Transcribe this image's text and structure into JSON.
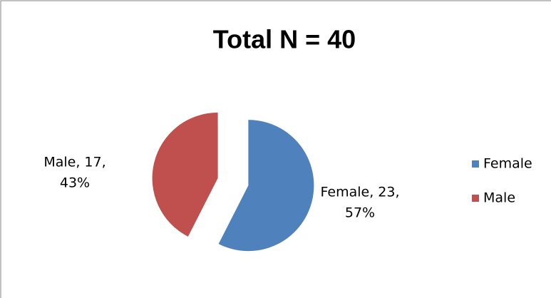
{
  "chart_data": {
    "type": "pie",
    "title": "Total N = 40",
    "categories": [
      "Female",
      "Male"
    ],
    "values": [
      23,
      17
    ],
    "value_labels": [
      [
        "Female, 23,",
        "57%"
      ],
      [
        "Male, 17,",
        "43%"
      ]
    ],
    "colors": [
      "#4f81bd",
      "#c0504d"
    ],
    "legend": "right"
  }
}
